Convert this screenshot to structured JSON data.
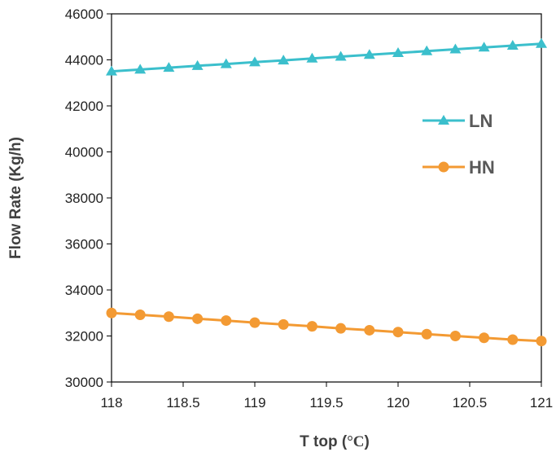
{
  "chart_data": {
    "type": "line",
    "xlabel": "T top (°C)",
    "xlabel_main": "T top (",
    "xlabel_unit": "°C",
    "xlabel_close": ")",
    "ylabel": "Flow Rate (Kg/h)",
    "xlim": [
      118,
      121
    ],
    "ylim": [
      30000,
      46000
    ],
    "x_ticks": [
      "118",
      "118.5",
      "119",
      "119.5",
      "120",
      "120.5",
      "121"
    ],
    "y_ticks": [
      "30000",
      "32000",
      "34000",
      "36000",
      "38000",
      "40000",
      "42000",
      "44000",
      "46000"
    ],
    "x": [
      118,
      118.2,
      118.4,
      118.6,
      118.8,
      119,
      119.2,
      119.4,
      119.6,
      119.8,
      120,
      120.2,
      120.4,
      120.6,
      120.8,
      121
    ],
    "series": [
      {
        "name": "LN",
        "color": "#3bbfcc",
        "marker": "triangle",
        "values": [
          43500,
          43580,
          43660,
          43740,
          43820,
          43900,
          43980,
          44060,
          44140,
          44220,
          44300,
          44380,
          44460,
          44540,
          44620,
          44700
        ]
      },
      {
        "name": "HN",
        "color": "#f39a33",
        "marker": "circle",
        "values": [
          33000,
          32920,
          32840,
          32750,
          32670,
          32580,
          32500,
          32420,
          32330,
          32250,
          32170,
          32080,
          32000,
          31920,
          31840,
          31780
        ]
      }
    ],
    "grid": false,
    "legend_position": "right"
  }
}
